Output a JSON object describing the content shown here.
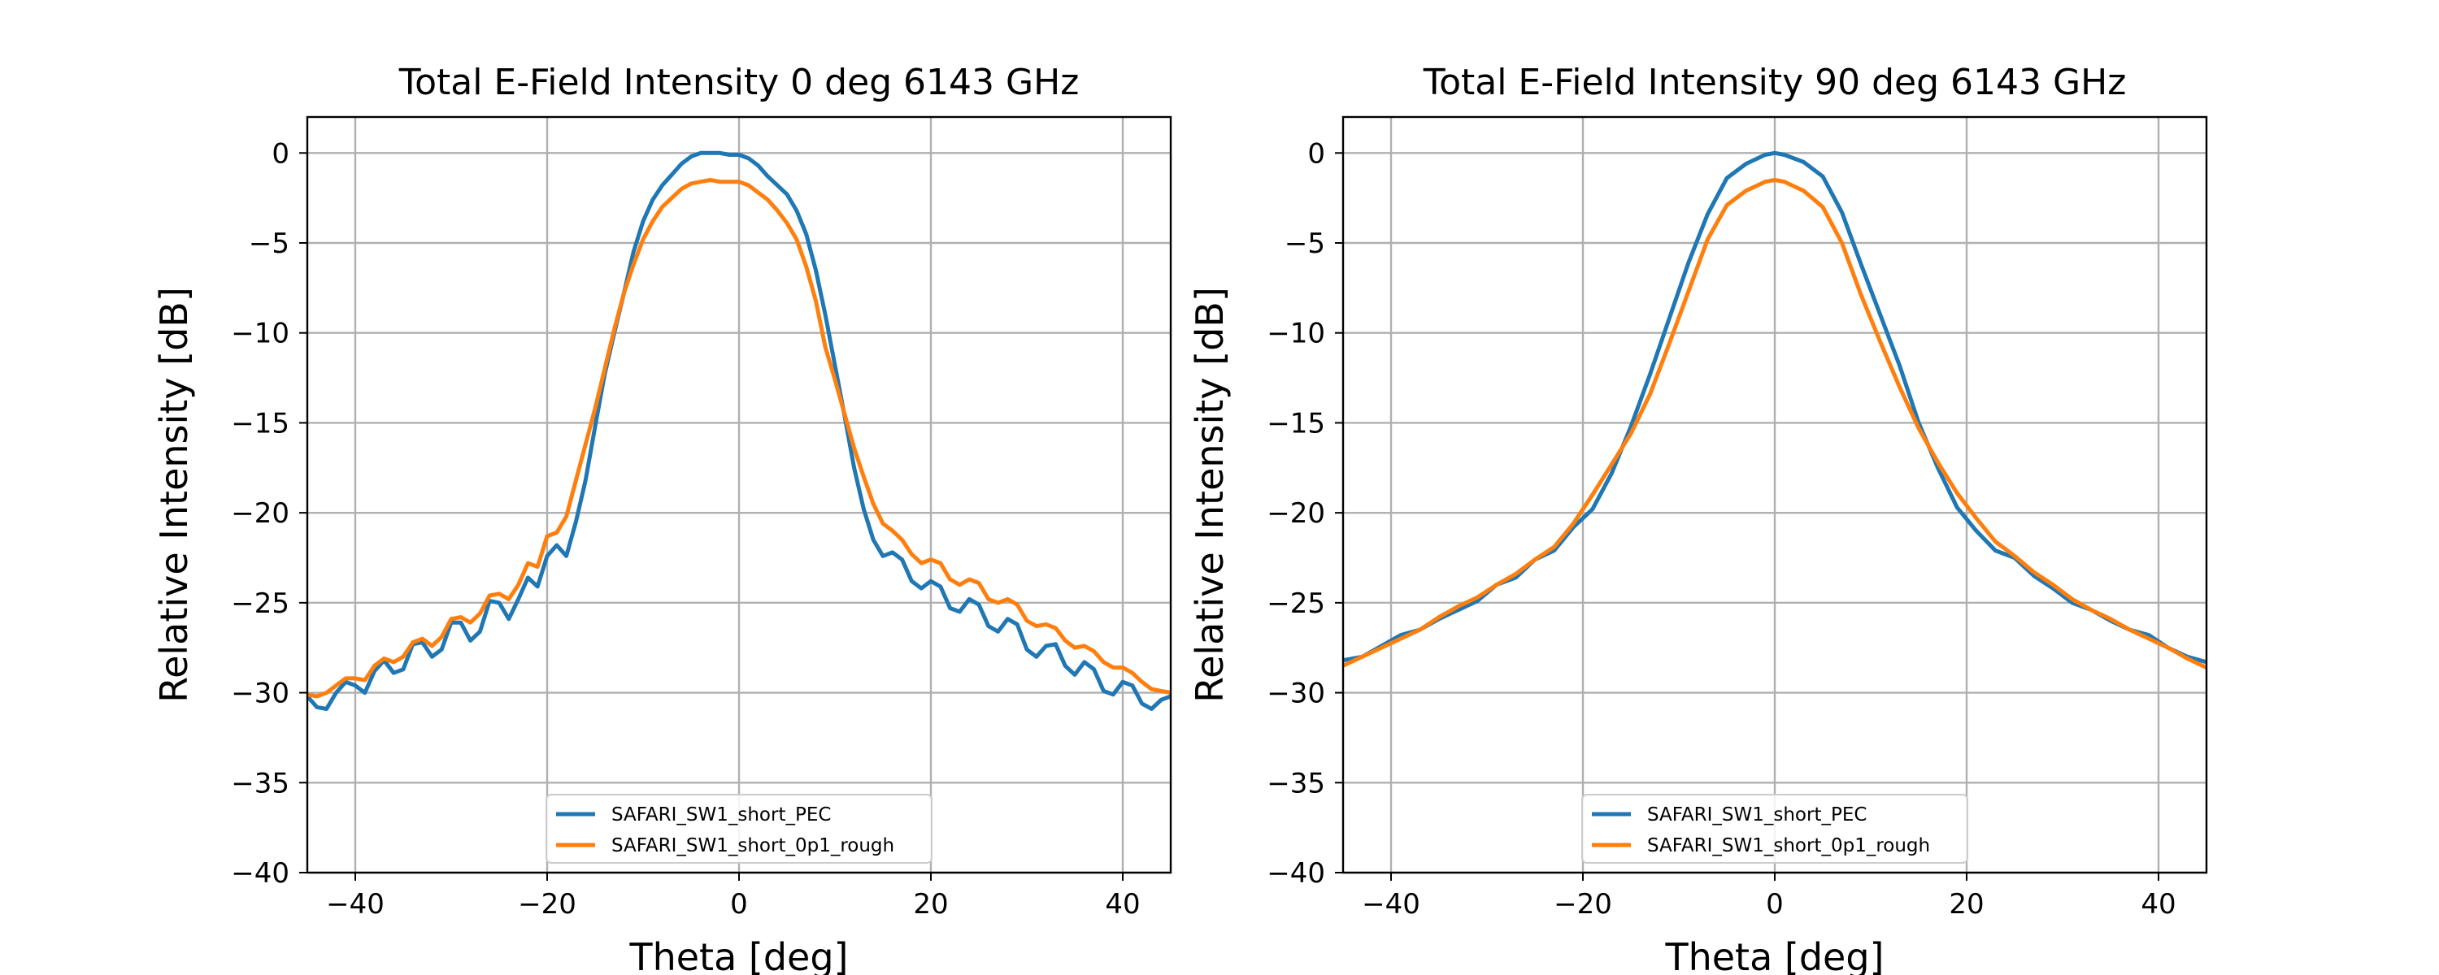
{
  "chart_data": [
    {
      "type": "line",
      "title": "Total E-Field Intensity 0 deg 6143 GHz",
      "xlabel": "Theta [deg]",
      "ylabel": "Relative Intensity [dB]",
      "xlim": [
        -45,
        45
      ],
      "ylim": [
        -40,
        2
      ],
      "xticks": [
        -40,
        -20,
        0,
        20,
        40
      ],
      "xtick_labels": [
        "−40",
        "−20",
        "0",
        "20",
        "40"
      ],
      "yticks": [
        0,
        -5,
        -10,
        -15,
        -20,
        -25,
        -30,
        -35,
        -40
      ],
      "ytick_labels": [
        "0",
        "−5",
        "−10",
        "−15",
        "−20",
        "−25",
        "−30",
        "−35",
        "−40"
      ],
      "grid": true,
      "legend_position": "bottom-center",
      "series": [
        {
          "name": "SAFARI_SW1_short_PEC",
          "color": "#1f77b4",
          "x": [
            -45,
            -44,
            -43,
            -42,
            -41,
            -40,
            -39,
            -38,
            -37,
            -36,
            -35,
            -34,
            -33,
            -32,
            -31,
            -30,
            -29,
            -28,
            -27,
            -26,
            -25,
            -24,
            -23,
            -22,
            -21,
            -20,
            -19,
            -18,
            -17,
            -16,
            -15,
            -14,
            -13,
            -12,
            -11,
            -10,
            -9,
            -8,
            -7,
            -6,
            -5,
            -4,
            -3,
            -2,
            -1,
            0,
            1,
            2,
            3,
            4,
            5,
            6,
            7,
            8,
            9,
            10,
            11,
            12,
            13,
            14,
            15,
            16,
            17,
            18,
            19,
            20,
            21,
            22,
            23,
            24,
            25,
            26,
            27,
            28,
            29,
            30,
            31,
            32,
            33,
            34,
            35,
            36,
            37,
            38,
            39,
            40,
            41,
            42,
            43,
            44,
            45
          ],
          "y": [
            -30.2,
            -30.8,
            -30.9,
            -30.0,
            -29.4,
            -29.6,
            -30.0,
            -28.8,
            -28.2,
            -28.9,
            -28.7,
            -27.3,
            -27.2,
            -28.0,
            -27.6,
            -26.1,
            -26.1,
            -27.1,
            -26.6,
            -24.9,
            -25.0,
            -25.9,
            -24.8,
            -23.6,
            -24.1,
            -22.4,
            -21.8,
            -22.4,
            -20.5,
            -18.2,
            -15.2,
            -12.3,
            -10.0,
            -7.8,
            -5.5,
            -3.8,
            -2.6,
            -1.8,
            -1.2,
            -0.6,
            -0.2,
            0.0,
            0.0,
            0.0,
            -0.1,
            -0.1,
            -0.3,
            -0.7,
            -1.3,
            -1.8,
            -2.3,
            -3.2,
            -4.5,
            -6.5,
            -9.0,
            -11.8,
            -14.6,
            -17.5,
            -19.8,
            -21.5,
            -22.4,
            -22.2,
            -22.6,
            -23.8,
            -24.2,
            -23.8,
            -24.1,
            -25.3,
            -25.5,
            -24.8,
            -25.1,
            -26.3,
            -26.6,
            -25.9,
            -26.2,
            -27.6,
            -28.0,
            -27.4,
            -27.3,
            -28.5,
            -29.0,
            -28.3,
            -28.7,
            -29.9,
            -30.1,
            -29.4,
            -29.6,
            -30.6,
            -30.9,
            -30.4,
            -30.2
          ]
        },
        {
          "name": "SAFARI_SW1_short_0p1_rough",
          "color": "#ff7f0e",
          "x": [
            -45,
            -44,
            -43,
            -42,
            -41,
            -40,
            -39,
            -38,
            -37,
            -36,
            -35,
            -34,
            -33,
            -32,
            -31,
            -30,
            -29,
            -28,
            -27,
            -26,
            -25,
            -24,
            -23,
            -22,
            -21,
            -20,
            -19,
            -18,
            -17,
            -16,
            -15,
            -14,
            -13,
            -12,
            -11,
            -10,
            -9,
            -8,
            -7,
            -6,
            -5,
            -4,
            -3,
            -2,
            -1,
            0,
            1,
            2,
            3,
            4,
            5,
            6,
            7,
            8,
            9,
            10,
            11,
            12,
            13,
            14,
            15,
            16,
            17,
            18,
            19,
            20,
            21,
            22,
            23,
            24,
            25,
            26,
            27,
            28,
            29,
            30,
            31,
            32,
            33,
            34,
            35,
            36,
            37,
            38,
            39,
            40,
            41,
            42,
            43,
            44,
            45
          ],
          "y": [
            -30.1,
            -30.2,
            -30.0,
            -29.6,
            -29.2,
            -29.2,
            -29.3,
            -28.5,
            -28.1,
            -28.3,
            -28.0,
            -27.2,
            -27.0,
            -27.4,
            -26.9,
            -25.9,
            -25.8,
            -26.1,
            -25.6,
            -24.6,
            -24.5,
            -24.8,
            -24.0,
            -22.8,
            -23.0,
            -21.3,
            -21.1,
            -20.2,
            -18.2,
            -16.2,
            -14.2,
            -12.0,
            -9.8,
            -7.8,
            -6.2,
            -4.8,
            -3.8,
            -3.0,
            -2.5,
            -2.0,
            -1.7,
            -1.6,
            -1.5,
            -1.6,
            -1.6,
            -1.6,
            -1.8,
            -2.2,
            -2.6,
            -3.2,
            -3.9,
            -4.8,
            -6.3,
            -8.2,
            -10.8,
            -12.6,
            -14.5,
            -16.4,
            -18.0,
            -19.5,
            -20.6,
            -21.0,
            -21.5,
            -22.3,
            -22.8,
            -22.6,
            -22.8,
            -23.7,
            -24.0,
            -23.7,
            -23.9,
            -24.8,
            -25.0,
            -24.8,
            -25.1,
            -26.0,
            -26.3,
            -26.2,
            -26.4,
            -27.1,
            -27.5,
            -27.4,
            -27.7,
            -28.3,
            -28.6,
            -28.6,
            -28.9,
            -29.4,
            -29.8,
            -29.9,
            -30.0
          ]
        }
      ]
    },
    {
      "type": "line",
      "title": "Total E-Field Intensity 90 deg 6143 GHz",
      "xlabel": "Theta [deg]",
      "ylabel": "Relative Intensity [dB]",
      "xlim": [
        -45,
        45
      ],
      "ylim": [
        -40,
        2
      ],
      "xticks": [
        -40,
        -20,
        0,
        20,
        40
      ],
      "xtick_labels": [
        "−40",
        "−20",
        "0",
        "20",
        "40"
      ],
      "yticks": [
        0,
        -5,
        -10,
        -15,
        -20,
        -25,
        -30,
        -35,
        -40
      ],
      "ytick_labels": [
        "0",
        "−5",
        "−10",
        "−15",
        "−20",
        "−25",
        "−30",
        "−35",
        "−40"
      ],
      "grid": true,
      "legend_position": "bottom-center",
      "series": [
        {
          "name": "SAFARI_SW1_short_PEC",
          "color": "#1f77b4",
          "x": [
            -45,
            -43,
            -41,
            -39,
            -37,
            -35,
            -33,
            -31,
            -29,
            -27,
            -25,
            -23,
            -21,
            -19,
            -17,
            -15,
            -13,
            -11,
            -9,
            -7,
            -5,
            -3,
            -1,
            0,
            1,
            3,
            5,
            7,
            9,
            11,
            13,
            15,
            17,
            19,
            21,
            23,
            25,
            27,
            29,
            31,
            33,
            35,
            37,
            39,
            41,
            43,
            45
          ],
          "y": [
            -28.2,
            -28.0,
            -27.4,
            -26.8,
            -26.5,
            -25.9,
            -25.4,
            -24.9,
            -24.0,
            -23.6,
            -22.6,
            -22.1,
            -20.8,
            -19.8,
            -17.8,
            -15.2,
            -12.3,
            -9.2,
            -6.1,
            -3.4,
            -1.4,
            -0.6,
            -0.1,
            0.0,
            -0.1,
            -0.5,
            -1.3,
            -3.3,
            -6.2,
            -9.0,
            -11.8,
            -15.0,
            -17.5,
            -19.7,
            -21.0,
            -22.1,
            -22.5,
            -23.5,
            -24.2,
            -25.0,
            -25.4,
            -26.0,
            -26.5,
            -26.8,
            -27.5,
            -28.0,
            -28.3
          ]
        },
        {
          "name": "SAFARI_SW1_short_0p1_rough",
          "color": "#ff7f0e",
          "x": [
            -45,
            -43,
            -41,
            -39,
            -37,
            -35,
            -33,
            -31,
            -29,
            -27,
            -25,
            -23,
            -21,
            -19,
            -17,
            -15,
            -13,
            -11,
            -9,
            -7,
            -5,
            -3,
            -1,
            0,
            1,
            3,
            5,
            7,
            9,
            11,
            13,
            15,
            17,
            19,
            21,
            23,
            25,
            27,
            29,
            31,
            33,
            35,
            37,
            39,
            41,
            43,
            45
          ],
          "y": [
            -28.5,
            -28.0,
            -27.5,
            -27.0,
            -26.5,
            -25.8,
            -25.2,
            -24.7,
            -24.0,
            -23.4,
            -22.6,
            -21.9,
            -20.6,
            -19.0,
            -17.3,
            -15.6,
            -13.4,
            -10.6,
            -7.7,
            -4.8,
            -2.9,
            -2.1,
            -1.6,
            -1.5,
            -1.6,
            -2.1,
            -3.0,
            -5.0,
            -7.9,
            -10.5,
            -13.0,
            -15.3,
            -17.2,
            -18.9,
            -20.3,
            -21.6,
            -22.4,
            -23.3,
            -24.0,
            -24.8,
            -25.4,
            -25.9,
            -26.5,
            -27.0,
            -27.5,
            -28.1,
            -28.6
          ]
        }
      ]
    }
  ]
}
